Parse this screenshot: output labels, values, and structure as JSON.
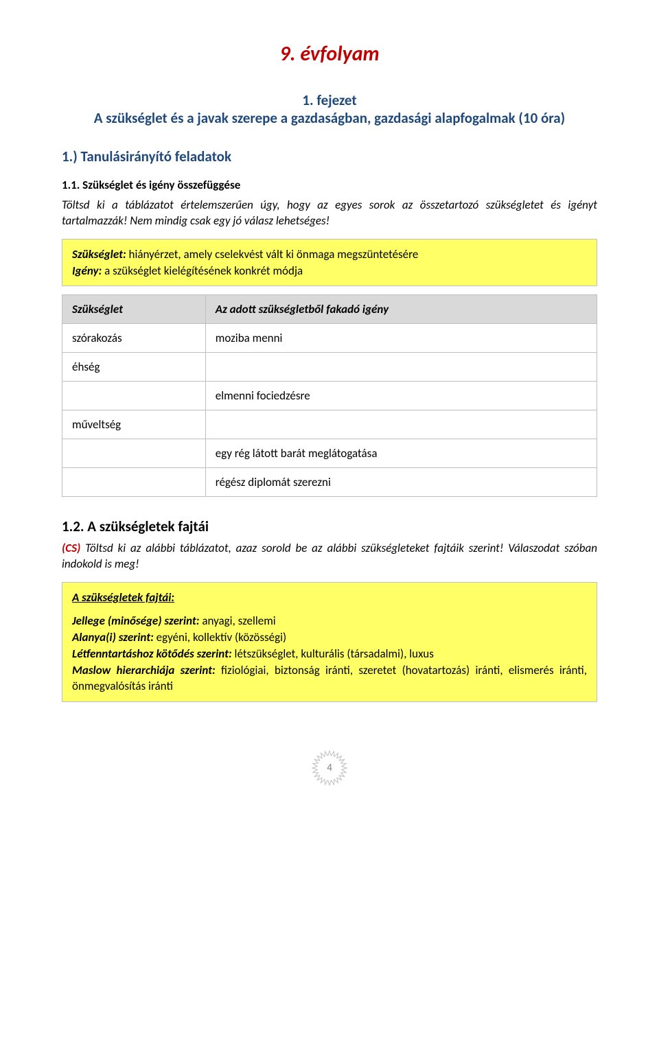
{
  "colors": {
    "title_red": "#c00000",
    "blue": "#1f497d",
    "yellow_bg": "#ffff66",
    "header_row_bg": "#d9d9d9",
    "border_gray": "#bfbfbf",
    "text_black": "#000000",
    "page_num_gray": "#7f7f7f"
  },
  "typography": {
    "title_fontsize": 30,
    "chapter_fontsize": 21,
    "body_fontsize": 17,
    "heading_fontsize": 21,
    "page_num_fontsize": 15
  },
  "title": "9. évfolyam",
  "chapter": {
    "line1": "1. fejezet",
    "line2": "A szükséglet és a javak szerepe a gazdaságban, gazdasági alapfogalmak (10 óra)"
  },
  "section1": {
    "heading": "1.) Tanulásirányító feladatok",
    "sub": "1.1. Szükséglet és igény összefüggése",
    "instr": "Töltsd ki a táblázatot értelemszerűen úgy, hogy az egyes sorok az összetartozó szükségletet és igényt tartalmazzák! Nem mindig csak egy jó válasz lehetséges!"
  },
  "defbox": {
    "need_label": "Szükséglet:",
    "need_text": " hiányérzet, amely cselekvést vált ki önmaga megszüntetésére",
    "demand_label": "Igény:",
    "demand_text": " a szükséglet kielégítésének konkrét módja"
  },
  "table": {
    "header_left": "Szükséglet",
    "header_right": "Az adott szükségletből fakadó igény",
    "rows": [
      {
        "left": "szórakozás",
        "right": "moziba menni"
      },
      {
        "left": "éhség",
        "right": ""
      },
      {
        "left": "",
        "right": "elmenni fociedzésre"
      },
      {
        "left": "műveltség",
        "right": ""
      },
      {
        "left": "",
        "right": "egy rég látott barát meglátogatása"
      },
      {
        "left": "",
        "right": "régész diplomát szerezni"
      }
    ]
  },
  "section2": {
    "heading": "1.2. A szükségletek fajtái",
    "instr_prefix": "(CS)",
    "instr_text": " Töltsd ki az alábbi táblázatot, azaz sorold be az alábbi szükségleteket fajtáik szerint! Válaszodat szóban indokold is meg!"
  },
  "kindsbox": {
    "title": "A szükségletek fajtái:",
    "l1_label": "Jellege (minősége) szerint:",
    "l1_text": " anyagi, szellemi",
    "l2_label": "Alanya(i) szerint:",
    "l2_text": " egyéni, kollektív (közösségi)",
    "l3_label": "Létfenntartáshoz kötődés szerint:",
    "l3_text": " létszükséglet, kulturális (társadalmi), luxus",
    "l4_label": "Maslow hierarchiája szerint:",
    "l4_text": " fiziológiai, biztonság iránti, szeretet (hovatartozás) iránti, elismerés iránti, önmegvalósítás iránti"
  },
  "page_number": "4",
  "starburst": {
    "size": 52,
    "points": 24,
    "stroke": "#bfbfbf"
  }
}
